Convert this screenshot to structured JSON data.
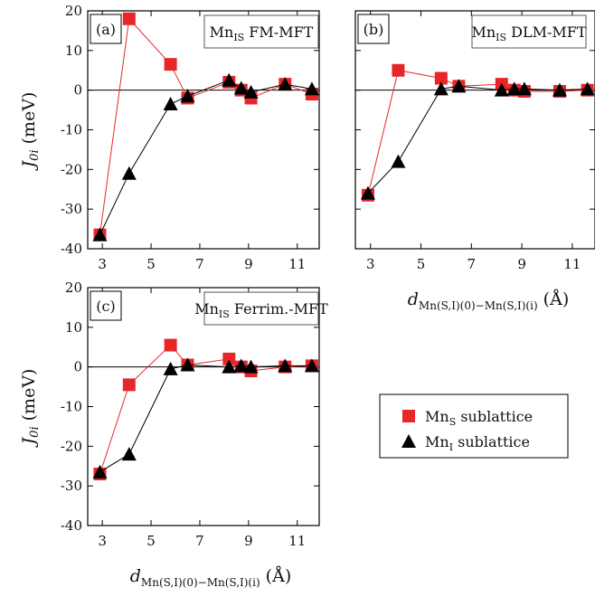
{
  "chart_data": [
    {
      "type": "line",
      "panel_label": "(a)",
      "title": "Mn_IS FM-MFT",
      "ylabel": "J_0i (meV)",
      "xlabel": "",
      "ylim": [
        -40,
        20
      ],
      "xlim": [
        2.4,
        11.9
      ],
      "xticks": [
        "3",
        "5",
        "7",
        "9",
        "11"
      ],
      "yticks": [
        "20",
        "10",
        "0",
        "-10",
        "-20",
        "-30",
        "-40"
      ],
      "show_yticklabels": true,
      "show_xticklabels": true,
      "series": [
        {
          "name": "Mn_S sublattice",
          "color": "#e8262a",
          "marker": "square",
          "x": [
            2.9,
            4.1,
            5.8,
            6.5,
            8.2,
            8.7,
            9.1,
            10.5,
            11.6
          ],
          "y": [
            -36.5,
            18,
            6.5,
            -2,
            2,
            0,
            -2,
            1.5,
            -1
          ]
        },
        {
          "name": "Mn_I sublattice",
          "color": "#000000",
          "marker": "triangle",
          "x": [
            2.9,
            4.1,
            5.8,
            6.5,
            8.2,
            8.7,
            9.1,
            10.5,
            11.6
          ],
          "y": [
            -36.5,
            -21,
            -3.5,
            -1.5,
            2.5,
            0.5,
            -0.5,
            1.5,
            0.3
          ]
        }
      ]
    },
    {
      "type": "line",
      "panel_label": "(b)",
      "title": "Mn_IS DLM-MFT",
      "ylabel": "",
      "xlabel": "d_Mn(S,I)(0)-Mn(S,I)(i) (Å)",
      "ylim": [
        -40,
        20
      ],
      "xlim": [
        2.4,
        11.9
      ],
      "xticks": [
        "3",
        "5",
        "7",
        "9",
        "11"
      ],
      "yticks": [],
      "show_yticklabels": false,
      "show_xticklabels": true,
      "series": [
        {
          "name": "Mn_S sublattice",
          "color": "#e8262a",
          "marker": "square",
          "x": [
            2.9,
            4.1,
            5.8,
            6.5,
            8.2,
            8.7,
            9.1,
            10.5,
            11.6
          ],
          "y": [
            -26.5,
            5,
            3,
            1,
            1.5,
            0,
            -0.3,
            -0.3,
            0
          ]
        },
        {
          "name": "Mn_I sublattice",
          "color": "#000000",
          "marker": "triangle",
          "x": [
            2.9,
            4.1,
            5.8,
            6.5,
            8.2,
            8.7,
            9.1,
            10.5,
            11.6
          ],
          "y": [
            -26,
            -18,
            0.3,
            1,
            0,
            0.3,
            0.3,
            0,
            0.3
          ]
        }
      ]
    },
    {
      "type": "line",
      "panel_label": "(c)",
      "title": "Mn_IS Ferrim.-MFT",
      "ylabel": "J_0i (meV)",
      "xlabel": "d_Mn(S,I)(0)-Mn(S,I)(i) (Å)",
      "ylim": [
        -40,
        20
      ],
      "xlim": [
        2.4,
        11.9
      ],
      "xticks": [
        "3",
        "5",
        "7",
        "9",
        "11"
      ],
      "yticks": [
        "20",
        "10",
        "0",
        "-10",
        "-20",
        "-30",
        "-40"
      ],
      "show_yticklabels": true,
      "show_xticklabels": true,
      "series": [
        {
          "name": "Mn_S sublattice",
          "color": "#e8262a",
          "marker": "square",
          "x": [
            2.9,
            4.1,
            5.8,
            6.5,
            8.2,
            8.7,
            9.1,
            10.5,
            11.6
          ],
          "y": [
            -27,
            -4.5,
            5.5,
            0.5,
            2,
            0,
            -1,
            0,
            0.3
          ]
        },
        {
          "name": "Mn_I sublattice",
          "color": "#000000",
          "marker": "triangle",
          "x": [
            2.9,
            4.1,
            5.8,
            6.5,
            8.2,
            8.7,
            9.1,
            10.5,
            11.6
          ],
          "y": [
            -26.5,
            -22,
            -0.5,
            0.5,
            0,
            0.3,
            0,
            0.3,
            0.3
          ]
        }
      ]
    }
  ],
  "legend": {
    "entries": [
      {
        "label": "Mn_S sublattice",
        "color": "#e8262a",
        "marker": "square"
      },
      {
        "label": "Mn_I sublattice",
        "color": "#000000",
        "marker": "triangle"
      }
    ]
  }
}
